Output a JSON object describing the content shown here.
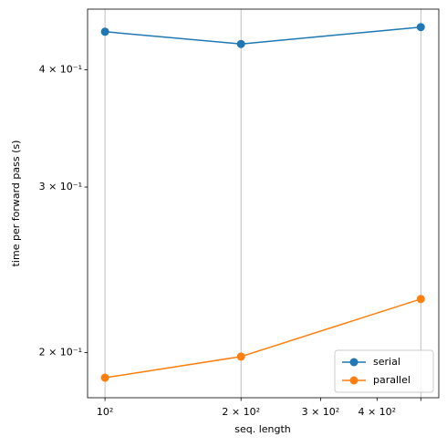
{
  "chart_data": {
    "type": "line",
    "xlabel": "seq. length",
    "ylabel": "time per forward pass (s)",
    "x": [
      100,
      200,
      500
    ],
    "series": [
      {
        "name": "serial",
        "color": "#1f77b4",
        "values": [
          0.439,
          0.426,
          0.444
        ]
      },
      {
        "name": "parallel",
        "color": "#ff7f0e",
        "values": [
          0.188,
          0.198,
          0.228
        ]
      }
    ],
    "xscale": "log",
    "yscale": "log",
    "xlim": [
      91.5,
      548
    ],
    "ylim": [
      0.179,
      0.464
    ],
    "xticks": [
      {
        "value": 100,
        "label": "10²"
      },
      {
        "value": 200,
        "label": "2 × 10²"
      },
      {
        "value": 300,
        "label": "3 × 10²"
      },
      {
        "value": 400,
        "label": "4 × 10²"
      },
      500
    ],
    "xgrid": [
      100,
      200,
      500
    ],
    "yticks": [
      {
        "value": 0.2,
        "label": "2 × 10⁻¹"
      },
      {
        "value": 0.3,
        "label": "3 × 10⁻¹"
      },
      {
        "value": 0.4,
        "label": "4 × 10⁻¹"
      }
    ],
    "grid": "x",
    "legend": "lower right",
    "marker": "o"
  }
}
